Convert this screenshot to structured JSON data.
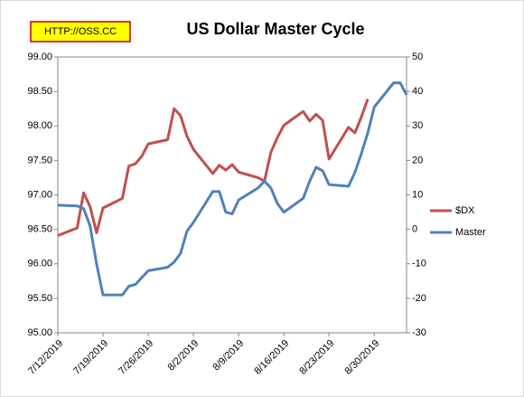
{
  "chart_data": {
    "type": "line",
    "title": "US Dollar Master Cycle",
    "annotations": [
      "HTTP://OSS.CC"
    ],
    "grid": false,
    "legend": "right",
    "xlim": [
      "7/12/2019",
      "9/4/2019"
    ],
    "xticks": [
      "7/12/2019",
      "7/19/2019",
      "7/26/2019",
      "8/2/2019",
      "8/9/2019",
      "8/16/2019",
      "8/23/2019",
      "8/30/2019"
    ],
    "ylim": [
      95,
      99
    ],
    "yticks": [
      {
        "value": 95,
        "label": "95.00"
      },
      {
        "value": 95.5,
        "label": "95.50"
      },
      {
        "value": 96,
        "label": "96.00"
      },
      {
        "value": 96.5,
        "label": "96.50"
      },
      {
        "value": 97,
        "label": "97.00"
      },
      {
        "value": 97.5,
        "label": "97.50"
      },
      {
        "value": 98,
        "label": "98.00"
      },
      {
        "value": 98.5,
        "label": "98.50"
      },
      {
        "value": 99,
        "label": "99.00"
      }
    ],
    "y2lim": [
      -30,
      50
    ],
    "y2ticks": [
      -30,
      -20,
      -10,
      0,
      10,
      20,
      30,
      40,
      50
    ],
    "series": [
      {
        "name": "$DX",
        "color": "#c0504d",
        "x": [
          "7/12/2019",
          "7/15/2019",
          "7/16/2019",
          "7/17/2019",
          "7/18/2019",
          "7/19/2019",
          "7/22/2019",
          "7/23/2019",
          "7/24/2019",
          "7/25/2019",
          "7/26/2019",
          "7/29/2019",
          "7/30/2019",
          "7/31/2019",
          "8/1/2019",
          "8/2/2019",
          "8/5/2019",
          "8/6/2019",
          "8/7/2019",
          "8/8/2019",
          "8/9/2019",
          "8/12/2019",
          "8/13/2019",
          "8/14/2019",
          "8/15/2019",
          "8/16/2019",
          "8/19/2019",
          "8/20/2019",
          "8/21/2019",
          "8/22/2019",
          "8/23/2019",
          "8/26/2019",
          "8/27/2019",
          "8/28/2019",
          "8/29/2019"
        ],
        "values": [
          96.41,
          96.52,
          97.03,
          96.83,
          96.45,
          96.81,
          96.95,
          97.42,
          97.45,
          97.56,
          97.74,
          97.8,
          98.25,
          98.15,
          97.85,
          97.66,
          97.31,
          97.43,
          97.36,
          97.44,
          97.33,
          97.25,
          97.2,
          97.62,
          97.83,
          98.01,
          98.21,
          98.07,
          98.17,
          98.08,
          97.52,
          97.98,
          97.9,
          98.13,
          98.39
        ]
      },
      {
        "name": "Master",
        "color": "#4f81bd",
        "axis": "y2",
        "x": [
          "7/12/2019",
          "7/15/2019",
          "7/16/2019",
          "7/17/2019",
          "7/18/2019",
          "7/19/2019",
          "7/22/2019",
          "7/23/2019",
          "7/24/2019",
          "7/25/2019",
          "7/26/2019",
          "7/29/2019",
          "7/30/2019",
          "7/31/2019",
          "8/1/2019",
          "8/2/2019",
          "8/5/2019",
          "8/6/2019",
          "8/7/2019",
          "8/8/2019",
          "8/9/2019",
          "8/12/2019",
          "8/13/2019",
          "8/14/2019",
          "8/15/2019",
          "8/16/2019",
          "8/19/2019",
          "8/20/2019",
          "8/21/2019",
          "8/22/2019",
          "8/23/2019",
          "8/26/2019",
          "8/27/2019",
          "8/28/2019",
          "8/29/2019",
          "8/30/2019",
          "9/2/2019",
          "9/3/2019",
          "9/4/2019"
        ],
        "values": [
          7,
          6.8,
          6,
          1,
          -10,
          -19,
          -19,
          -16.5,
          -16,
          -14,
          -12,
          -11,
          -9.5,
          -7,
          -0.5,
          2,
          11,
          11,
          5,
          4.5,
          8.5,
          12,
          14,
          12,
          7.5,
          5,
          9,
          14,
          18,
          17,
          13,
          12.5,
          16.5,
          22,
          28,
          35.5,
          42.5,
          42.5,
          39
        ]
      }
    ]
  }
}
